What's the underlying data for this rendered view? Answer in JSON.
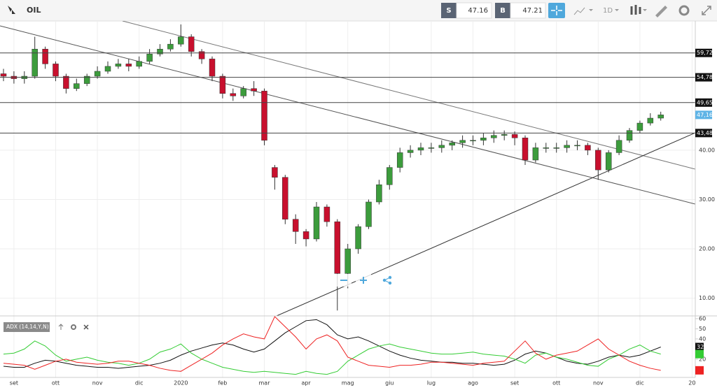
{
  "toolbar": {
    "symbol": "OIL",
    "sell_label": "S",
    "sell_price": "47.16",
    "buy_label": "B",
    "buy_price": "47.21",
    "interval": "1D"
  },
  "chart_data": [
    {
      "type": "candlestick",
      "categories": [
        null,
        "set",
        null,
        null,
        null,
        "ott",
        null,
        null,
        null,
        "nov",
        null,
        null,
        null,
        "dic",
        null,
        null,
        null,
        "2020",
        null,
        null,
        null,
        "feb",
        null,
        null,
        null,
        "mar",
        null,
        null,
        null,
        "apr",
        null,
        null,
        null,
        "mag",
        null,
        null,
        null,
        "giu",
        null,
        null,
        null,
        "lug",
        null,
        null,
        null,
        "ago",
        null,
        null,
        null,
        "set",
        null,
        null,
        null,
        "ott",
        null,
        null,
        null,
        "nov",
        null,
        null,
        null,
        "dic",
        null,
        null,
        null,
        null,
        "20"
      ],
      "open": [
        55.5,
        55,
        54.5,
        55,
        60.5,
        57.5,
        55,
        52.5,
        53.5,
        55,
        56,
        57,
        57.5,
        57,
        58,
        59.5,
        60.5,
        61.5,
        63,
        60,
        58.5,
        55,
        51.5,
        51,
        52.5,
        52,
        36.5,
        34.5,
        26,
        23.5,
        22,
        28.5,
        25.5,
        15,
        20,
        24.5,
        29.5,
        33,
        36.5,
        39.5,
        40,
        40.5,
        40.5,
        41,
        41.5,
        42,
        42,
        42.5,
        43,
        43.2,
        42.5,
        38,
        40.5,
        40.5,
        40.5,
        41,
        41,
        40,
        36,
        39.5,
        42,
        44,
        45.5,
        46.5,
        null,
        null,
        null
      ],
      "high": [
        56.5,
        56,
        56,
        63,
        61,
        58,
        55.5,
        54.5,
        55.5,
        57,
        58,
        58.5,
        58.5,
        59,
        60.5,
        61.5,
        62.5,
        65.5,
        63.5,
        60.5,
        59,
        55.5,
        52.5,
        53,
        54,
        52.5,
        37,
        35,
        27,
        24,
        29.5,
        29,
        26,
        21,
        25,
        30,
        34,
        37,
        40.5,
        41,
        41.5,
        41.5,
        42,
        42,
        43,
        43,
        43.5,
        44,
        44,
        43.8,
        43,
        41.5,
        41.5,
        41.5,
        42,
        42,
        41.5,
        40.5,
        40,
        43,
        44.5,
        46,
        47.5,
        47.8,
        null,
        null,
        null
      ],
      "low": [
        54,
        53.5,
        53.5,
        54.5,
        56.5,
        54,
        51.5,
        52,
        53,
        54.5,
        55.5,
        56.5,
        56,
        56.5,
        57.5,
        59,
        60,
        61,
        59,
        57.5,
        54,
        50.5,
        50,
        50.5,
        51,
        41,
        32,
        25,
        21,
        20.5,
        21.5,
        24.5,
        7.5,
        12,
        19,
        24,
        29,
        32,
        35.5,
        38.5,
        39,
        39.5,
        39.5,
        40,
        40.5,
        41,
        41,
        41.5,
        42,
        41,
        37,
        37.5,
        39.5,
        39.5,
        39.5,
        40,
        39,
        34,
        35.5,
        39,
        41.5,
        43.5,
        45,
        46,
        null,
        null,
        null
      ],
      "close": [
        55,
        54.5,
        55,
        60.5,
        57.5,
        55,
        52.5,
        53.5,
        55,
        56,
        57,
        57.5,
        57,
        58,
        59.5,
        60.5,
        61.5,
        63,
        60,
        58.5,
        55,
        51.5,
        51,
        52.5,
        52,
        42,
        34.5,
        26,
        23.5,
        22,
        28.5,
        25.5,
        15,
        20,
        24.5,
        29.5,
        33,
        36.5,
        39.5,
        40,
        40.5,
        40.5,
        41,
        41.5,
        42,
        42,
        42.5,
        43,
        43.2,
        42.5,
        38,
        40.5,
        40.5,
        40.5,
        41,
        41,
        40,
        36,
        39.5,
        42,
        44,
        45.5,
        46.5,
        47.16,
        null,
        null,
        null
      ],
      "up_color": "#3c9c3c",
      "down_color": "#c8102e",
      "ylim": [
        6.4,
        66.2
      ],
      "yticks": [
        {
          "value": 10,
          "label": "10.00"
        },
        {
          "value": 20,
          "label": "20.00"
        },
        {
          "value": 30,
          "label": "30.00"
        },
        {
          "value": 40,
          "label": "40.00"
        }
      ],
      "grid": true,
      "levels": {
        "values": [
          59.72,
          54.78,
          49.65,
          43.48
        ],
        "value_labels": [
          "59,72",
          "54,78",
          "49,65",
          "43,48"
        ]
      },
      "last_price": {
        "value": 47.16,
        "label": "47,16"
      }
    },
    {
      "type": "line",
      "title": "ADX (14,14,Y,N)",
      "series": [
        {
          "color": "#111111",
          "values": [
            13,
            12,
            12,
            16,
            19,
            18,
            16,
            14,
            13,
            12,
            12,
            11,
            12,
            13,
            14,
            16,
            19,
            24,
            28,
            31,
            34,
            36,
            34,
            30,
            27,
            30,
            38,
            46,
            52,
            58,
            59,
            54,
            44,
            40,
            42,
            38,
            33,
            28,
            24,
            21,
            19,
            18,
            17,
            17,
            16,
            16,
            15,
            14,
            15,
            19,
            25,
            28,
            26,
            22,
            18,
            16,
            15,
            18,
            22,
            24,
            22,
            24,
            28,
            32,
            null,
            null,
            null
          ]
        },
        {
          "color": "#33cc33",
          "values": [
            25,
            26,
            30,
            38,
            33,
            24,
            18,
            20,
            22,
            19,
            17,
            16,
            14,
            16,
            20,
            27,
            30,
            35,
            26,
            20,
            16,
            12,
            10,
            8,
            7,
            8,
            7,
            6,
            5,
            8,
            6,
            5,
            8,
            18,
            24,
            30,
            33,
            35,
            32,
            30,
            28,
            26,
            25,
            25,
            26,
            27,
            25,
            24,
            23,
            20,
            16,
            24,
            26,
            22,
            20,
            17,
            14,
            13,
            20,
            24,
            30,
            34,
            28,
            25,
            null,
            null,
            null
          ]
        },
        {
          "color": "#ee2222",
          "values": [
            16,
            15,
            14,
            10,
            14,
            18,
            20,
            17,
            16,
            15,
            16,
            18,
            18,
            16,
            14,
            11,
            9,
            8,
            14,
            20,
            26,
            34,
            40,
            45,
            42,
            40,
            62,
            52,
            42,
            30,
            40,
            44,
            38,
            22,
            18,
            14,
            13,
            12,
            14,
            14,
            15,
            17,
            17,
            16,
            15,
            14,
            16,
            17,
            18,
            28,
            38,
            26,
            20,
            24,
            26,
            28,
            34,
            40,
            30,
            24,
            18,
            14,
            11,
            9,
            null,
            null,
            null
          ]
        }
      ],
      "ylim": [
        2,
        62
      ],
      "yticks": [
        20,
        40,
        50,
        60
      ]
    }
  ]
}
